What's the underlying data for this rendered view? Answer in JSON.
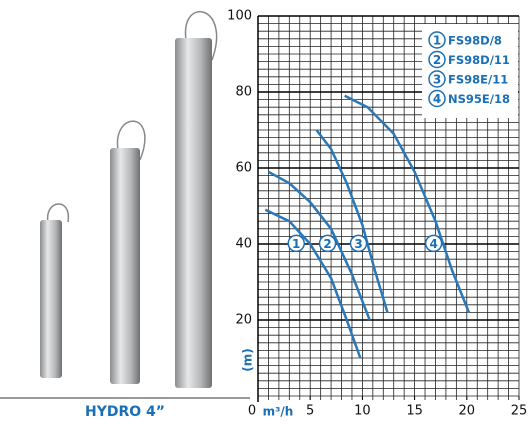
{
  "chart_data": {
    "type": "line",
    "caption": "HYDRO 4”",
    "x_unit": "m³/h",
    "y_unit": "(m)",
    "xlim": [
      0,
      25
    ],
    "ylim": [
      0,
      100
    ],
    "xticks": [
      0,
      5,
      10,
      15,
      20,
      25
    ],
    "yticks": [
      20,
      40,
      60,
      80,
      100
    ],
    "grid": true,
    "series": [
      {
        "name": "FS98D/8",
        "label": "1",
        "color": "#2a78b8",
        "x": [
          0.7,
          3,
          5,
          7,
          8.5,
          9.8
        ],
        "values": [
          49,
          46,
          40,
          31,
          20,
          10
        ]
      },
      {
        "name": "FS98D/11",
        "label": "2",
        "color": "#2a78b8",
        "x": [
          1,
          3,
          5,
          7,
          9,
          10.7
        ],
        "values": [
          59,
          56,
          51,
          44,
          32,
          20
        ]
      },
      {
        "name": "FS98E/11",
        "label": "3",
        "color": "#2a78b8",
        "x": [
          5.6,
          7,
          8.5,
          10,
          11.2,
          12.4
        ],
        "values": [
          70,
          65,
          56,
          45,
          33,
          22
        ]
      },
      {
        "name": "NS95E/18",
        "label": "4",
        "color": "#2a78b8",
        "x": [
          8.3,
          10.5,
          13,
          15,
          17,
          18.6,
          20.2
        ],
        "values": [
          79,
          76,
          69,
          59,
          46,
          33,
          22
        ]
      }
    ]
  }
}
